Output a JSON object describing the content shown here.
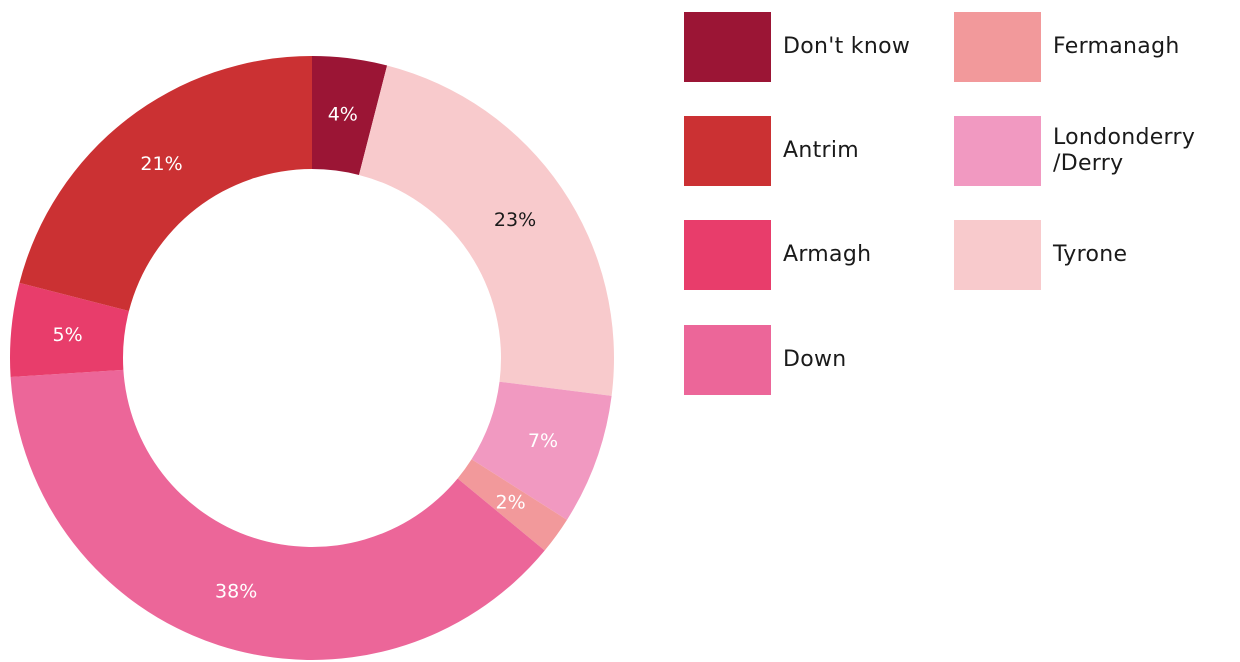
{
  "chart_data": {
    "type": "pie",
    "donut": true,
    "title": "",
    "slices": [
      {
        "name": "Don't know",
        "value": 4,
        "label": "4%",
        "color": "#9b1535",
        "text_color": "#ffffff"
      },
      {
        "name": "Tyrone",
        "value": 23,
        "label": "23%",
        "color": "#f8cacc",
        "text_color": "#1a1a1a"
      },
      {
        "name": "Londonderry /Derry",
        "value": 7,
        "label": "7%",
        "color": "#f199c1",
        "text_color": "#ffffff"
      },
      {
        "name": "Fermanagh",
        "value": 2,
        "label": "2%",
        "color": "#f2999b",
        "text_color": "#ffffff"
      },
      {
        "name": "Down",
        "value": 38,
        "label": "38%",
        "color": "#ec6699",
        "text_color": "#ffffff"
      },
      {
        "name": "Armagh",
        "value": 5,
        "label": "5%",
        "color": "#e83d6b",
        "text_color": "#ffffff"
      },
      {
        "name": "Antrim",
        "value": 21,
        "label": "21%",
        "color": "#cb3133",
        "text_color": "#ffffff"
      }
    ],
    "legend": {
      "placement": "right",
      "entries": [
        {
          "label": "Don't know",
          "color": "#9b1535"
        },
        {
          "label": "Antrim",
          "color": "#cb3133"
        },
        {
          "label": "Armagh",
          "color": "#e83d6b"
        },
        {
          "label": "Down",
          "color": "#ec6699"
        },
        {
          "label": "Fermanagh",
          "color": "#f2999b"
        },
        {
          "label": "Londonderry\n/Derry",
          "color": "#f199c1"
        },
        {
          "label": "Tyrone",
          "color": "#f8cacc"
        }
      ]
    }
  }
}
